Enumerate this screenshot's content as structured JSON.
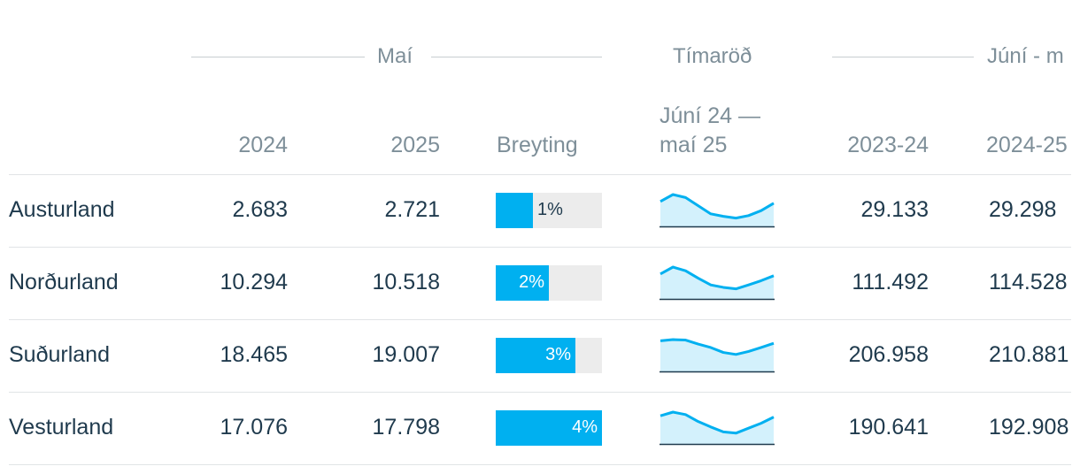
{
  "groups": {
    "may": "Maí",
    "series": "Tímaröð",
    "period": "Júní - m"
  },
  "columns": {
    "y2024": "2024",
    "y2025": "2025",
    "change": "Breyting",
    "spark_l1": "Júní 24 —",
    "spark_l2": "maí 25",
    "p2324": "2023-24",
    "p2425": "2024-25"
  },
  "colors": {
    "bar": "#00b0f0",
    "bar_bg": "#ececec",
    "spark_line": "#00b0f0",
    "spark_fill": "#d3f1fc",
    "baseline": "#1f3a4d"
  },
  "rows": [
    {
      "region": "Austurland",
      "may2024": "2.683",
      "may2025": "2.721",
      "change_label": "1%",
      "change_pct": 1,
      "p2324": "29.133",
      "p2425": "29.298",
      "spark": [
        0.72,
        1.0,
        0.88,
        0.55,
        0.22,
        0.12,
        0.05,
        0.15,
        0.35,
        0.65
      ]
    },
    {
      "region": "Norðurland",
      "may2024": "10.294",
      "may2025": "10.518",
      "change_label": "2%",
      "change_pct": 2,
      "p2324": "111.492",
      "p2425": "114.528",
      "spark": [
        0.72,
        1.0,
        0.85,
        0.55,
        0.28,
        0.18,
        0.12,
        0.28,
        0.45,
        0.65
      ]
    },
    {
      "region": "Suðurland",
      "may2024": "18.465",
      "may2025": "19.007",
      "change_label": "3%",
      "change_pct": 3,
      "p2324": "206.958",
      "p2425": "210.881",
      "spark": [
        0.95,
        1.0,
        0.98,
        0.82,
        0.68,
        0.48,
        0.4,
        0.52,
        0.68,
        0.85
      ]
    },
    {
      "region": "Vesturland",
      "may2024": "17.076",
      "may2025": "17.798",
      "change_label": "4%",
      "change_pct": 4,
      "p2324": "190.641",
      "p2425": "192.908",
      "spark": [
        0.85,
        1.0,
        0.9,
        0.62,
        0.4,
        0.2,
        0.15,
        0.35,
        0.55,
        0.8
      ]
    }
  ]
}
